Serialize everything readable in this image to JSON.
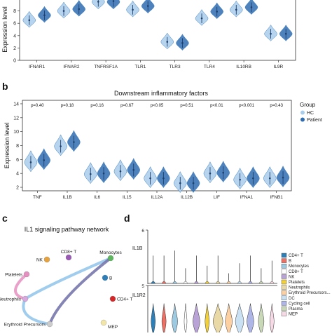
{
  "panels": {
    "a": {
      "label": ""
    },
    "b": {
      "label": "b"
    },
    "c": {
      "label": "c"
    },
    "d": {
      "label": "d"
    }
  },
  "colors": {
    "hc": "#a9cdea",
    "patient": "#2f6cb0",
    "violin_edge": "#3f7fbf"
  },
  "chart_data": [
    {
      "type": "violin",
      "panel": "a",
      "title": "",
      "xlabel": "",
      "ylabel": "Expression level",
      "ylim": [
        0,
        10
      ],
      "yticks": [
        0,
        2,
        4,
        6,
        8
      ],
      "categories": [
        "IFNAR1",
        "IFNAR2",
        "TNFRSF1A",
        "TLR1",
        "TLR3",
        "TLR4",
        "IL10RB",
        "IL9R"
      ],
      "series": [
        {
          "name": "HC",
          "color": "#a9cdea",
          "medians": [
            6.5,
            8.0,
            9.5,
            8.2,
            3.0,
            6.8,
            8.2,
            4.3
          ]
        },
        {
          "name": "Patient",
          "color": "#2f6cb0",
          "medians": [
            7.3,
            8.3,
            9.6,
            8.8,
            2.8,
            7.9,
            8.6,
            4.3
          ]
        }
      ],
      "pvalues": []
    },
    {
      "type": "violin",
      "panel": "b",
      "title": "Downstream inflammatory factors",
      "xlabel": "",
      "ylabel": "Expression level",
      "ylim": [
        1.5,
        14.5
      ],
      "yticks": [
        2,
        4,
        6,
        8,
        10,
        12,
        14
      ],
      "categories": [
        "TNF",
        "IL1B",
        "IL6",
        "IL15",
        "IL12A",
        "IL12B",
        "LIF",
        "IFNA1",
        "IFNB1"
      ],
      "pvalues": [
        "p=0.40",
        "p=0.18",
        "p=0.16",
        "p=0.67",
        "p<0.05",
        "p=0.51",
        "p<0.01",
        "p<0.001",
        "p=0.43"
      ],
      "series": [
        {
          "name": "HC",
          "color": "#a9cdea",
          "medians": [
            5.6,
            7.9,
            3.9,
            4.3,
            3.3,
            2.6,
            4.0,
            3.1,
            3.3
          ]
        },
        {
          "name": "Patient",
          "color": "#2f6cb0",
          "medians": [
            5.9,
            8.5,
            4.0,
            4.5,
            3.3,
            2.6,
            4.1,
            3.3,
            3.4
          ]
        }
      ],
      "legend": {
        "title": "Group",
        "position": "right",
        "entries": [
          "HC",
          "Patient"
        ]
      }
    },
    {
      "type": "network",
      "panel": "c",
      "title": "IL1 signaling pathway network",
      "nodes": [
        {
          "label": "CD8+ T",
          "color": "#9b59b6"
        },
        {
          "label": "NK",
          "color": "#e6a23c"
        },
        {
          "label": "Monocytes",
          "color": "#5cb85c"
        },
        {
          "label": "Platelets",
          "color": "#e58fc0"
        },
        {
          "label": "B",
          "color": "#2c7fb8"
        },
        {
          "label": "CD4+ T",
          "color": "#d62728"
        },
        {
          "label": "Neutrophils",
          "color": "#d9a7e0"
        },
        {
          "label": "Erythroid Precursors",
          "color": "#cccccc"
        },
        {
          "label": "MEP",
          "color": "#f1e6a8"
        }
      ],
      "edges": [
        {
          "from": "Monocytes",
          "to": "Neutrophils",
          "color": "#8fc4ea"
        },
        {
          "from": "Monocytes",
          "to": "Erythroid Precursors",
          "color": "#6f6fa8"
        },
        {
          "from": "Neutrophils",
          "to": "Erythroid Precursors",
          "color": "#8fc4ea"
        },
        {
          "from": "Platelets",
          "to": "Neutrophils",
          "color": "#e58fc0"
        }
      ]
    },
    {
      "type": "stacked_violin",
      "panel": "d",
      "tracks": [
        {
          "gene": "IL1B",
          "yticks": [
            "6"
          ]
        },
        {
          "gene": "IL1R2",
          "yticks": [
            "5"
          ]
        }
      ],
      "cell_types": [
        "CD4+ T",
        "B",
        "Monocytes",
        "CD8+ T",
        "NK",
        "Platelets",
        "Neutrophils",
        "Erythroid Precursors",
        "DC",
        "Cycling cell",
        "Plasma",
        "MEP"
      ],
      "colors": [
        "#2c7fb8",
        "#ec7063",
        "#9ecae1",
        "#ffffff",
        "#b9a2d6",
        "#f2d03b",
        "#e9d9a6",
        "#fdd0a2",
        "#c9e1f2",
        "#aeb6e8",
        "#c9d9b8",
        "#f7d9e6"
      ],
      "il1b_peaks": [
        0.55,
        0.55,
        0.65,
        0.3,
        0.55,
        0.35,
        0.55,
        0.2,
        0.4,
        0.55,
        0.3,
        0.45
      ],
      "legend_display": [
        "CD4+ T",
        "B",
        "Monocytes",
        "CD8+ T",
        "NK",
        "Platelets",
        "Neutrophils",
        "Erythroid Precursors...",
        "DC",
        "Cycling cell",
        "Plasma",
        "MEP"
      ]
    }
  ]
}
